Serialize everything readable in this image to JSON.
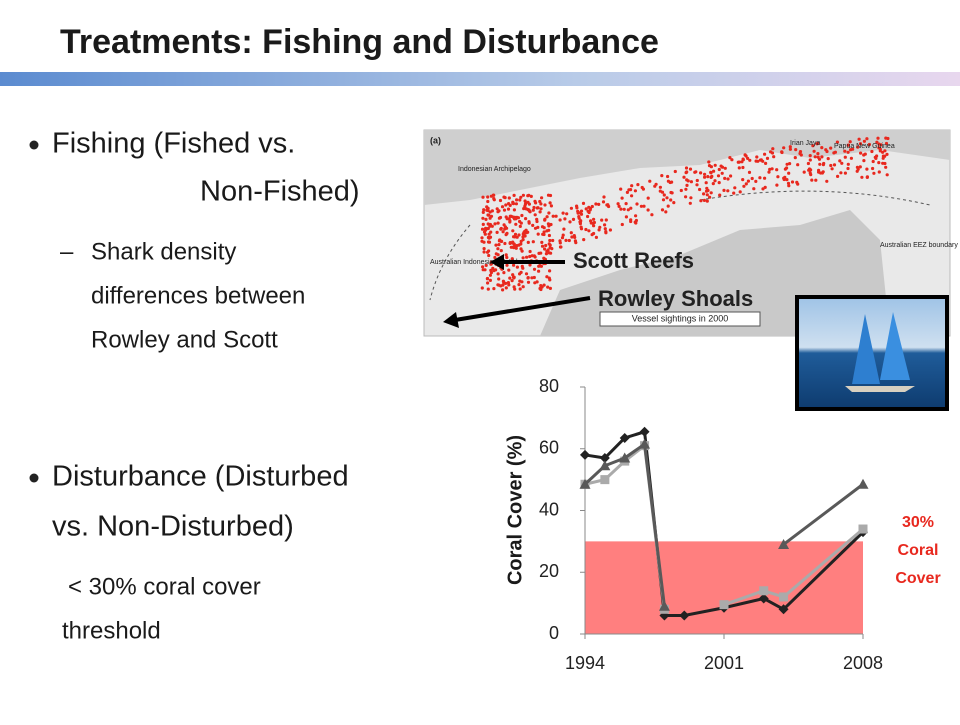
{
  "header": {
    "title": "Treatments: Fishing and Disturbance"
  },
  "bullets": [
    {
      "lines": [
        "Fishing (Fished vs.",
        "Non-Fished)"
      ],
      "sub": {
        "lines": [
          "Shark density",
          "differences between",
          "Rowley and Scott"
        ]
      }
    },
    {
      "lines": [
        "Disturbance (Disturbed",
        "vs. Non-Disturbed)"
      ],
      "sub": {
        "lines": [
          "< 30% coral cover",
          "threshold"
        ]
      }
    }
  ],
  "map": {
    "panel": "(a)",
    "labels": [
      "Indonesian Archipelago",
      "Irian Jaya",
      "Papua New Guinea",
      "Australian Indonesian MoU box",
      "Australian EEZ boundary",
      "Vessel sightings in 2000"
    ],
    "callouts": [
      "Scott Reefs",
      "Rowley Shoals"
    ]
  },
  "chart_data": {
    "type": "line",
    "y_label": "Coral Cover (%)",
    "x": [
      1994,
      1995,
      1996,
      1997,
      1998,
      1999,
      2001,
      2003,
      2004,
      2008
    ],
    "xlim": [
      1994,
      2008
    ],
    "xticks": [
      1994,
      2001,
      2008
    ],
    "ylim": [
      0,
      80
    ],
    "yticks": [
      0,
      20,
      40,
      60,
      80
    ],
    "threshold": {
      "value": 30,
      "color": "#ff7f7f",
      "label_lines": [
        "30%",
        "Coral",
        "Cover"
      ]
    },
    "series": [
      {
        "color": "#222222",
        "marker": "diamond",
        "values": [
          58,
          57,
          63.5,
          65.5,
          6,
          6,
          8.5,
          11.5,
          8,
          33
        ]
      },
      {
        "color": "#aaaaaa",
        "marker": "square",
        "values": [
          48.5,
          50,
          56,
          61,
          8,
          null,
          9.5,
          14,
          12,
          34
        ]
      },
      {
        "color": "#595959",
        "marker": "triangle",
        "values": [
          48.5,
          54.5,
          57,
          61.5,
          9,
          null,
          null,
          null,
          29,
          48.5
        ]
      }
    ]
  }
}
